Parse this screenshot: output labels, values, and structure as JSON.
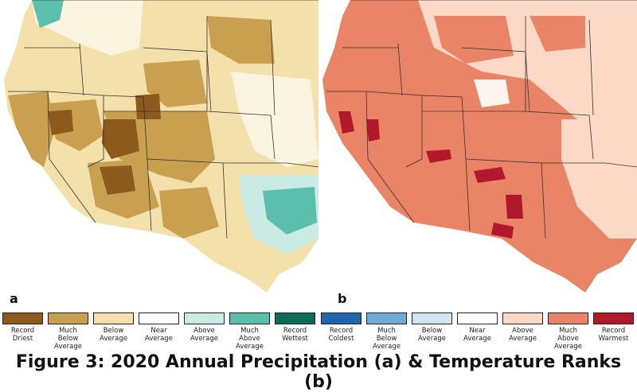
{
  "panels": {
    "a_label": "a",
    "b_label": "b"
  },
  "legend": [
    {
      "label": "Record\nDriest",
      "color": "#8c5a1c"
    },
    {
      "label": "Much\nBelow\nAverage",
      "color": "#c8a050"
    },
    {
      "label": "Below\nAverage",
      "color": "#f3e0aa"
    },
    {
      "label": "Near\nAverage",
      "color": "#ffffff"
    },
    {
      "label": "Above\nAverage",
      "color": "#c9ebe3"
    },
    {
      "label": "Much\nAbove\nAverage",
      "color": "#5cbfae"
    },
    {
      "label": "Record\nWettest",
      "color": "#0f6b57"
    },
    {
      "label": "Record\nColdest",
      "color": "#2166ac"
    },
    {
      "label": "Much\nBelow\nAverage",
      "color": "#6fa9d6"
    },
    {
      "label": "Below\nAverage",
      "color": "#d1e5f0"
    },
    {
      "label": "Near\nAverage",
      "color": "#ffffff"
    },
    {
      "label": "Above\nAverage",
      "color": "#fbd9c6"
    },
    {
      "label": "Much\nAbove\nAverage",
      "color": "#ea8466"
    },
    {
      "label": "Record\nWarmest",
      "color": "#b2182b"
    }
  ],
  "caption": "Figure 3: 2020 Annual Precipitation (a) & Temperature Ranks (b)"
}
